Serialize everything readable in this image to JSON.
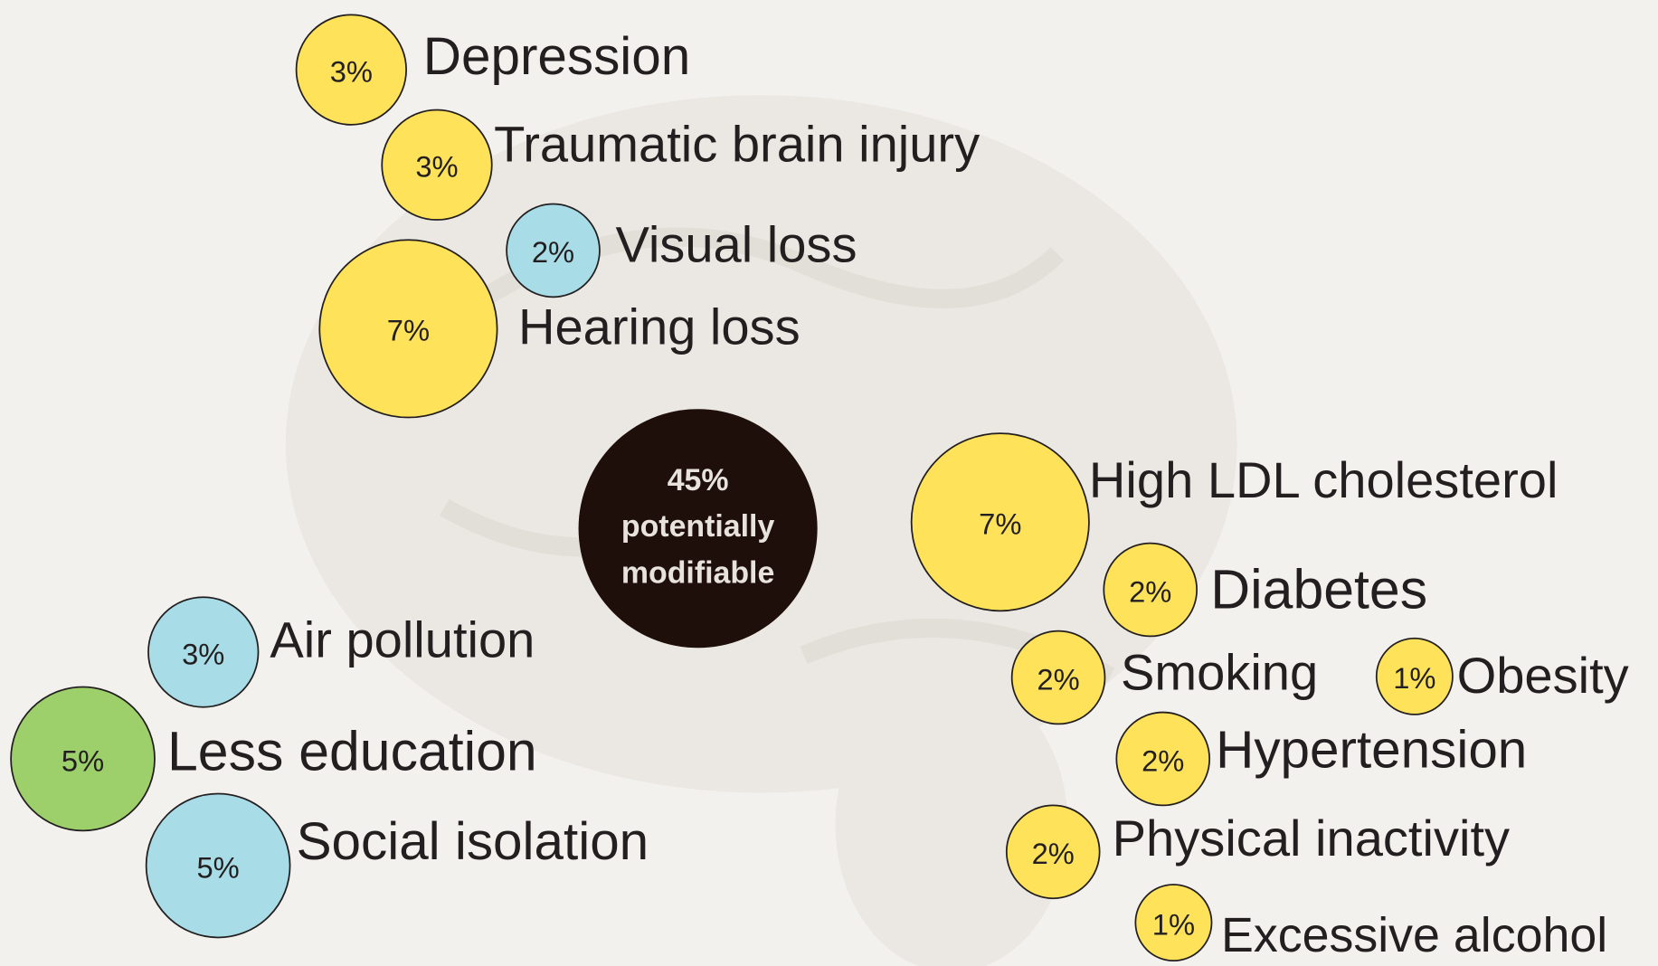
{
  "chart_data": {
    "type": "bubble",
    "categories": [
      "Depression",
      "Traumatic brain injury",
      "Visual loss",
      "Hearing loss",
      "High LDL cholesterol",
      "Diabetes",
      "Smoking",
      "Obesity",
      "Hypertension",
      "Physical inactivity",
      "Excessive alcohol",
      "Air pollution",
      "Less education",
      "Social isolation"
    ],
    "values": [
      3,
      3,
      2,
      7,
      7,
      2,
      2,
      1,
      2,
      2,
      1,
      3,
      5,
      5
    ],
    "value_labels": [
      "3%",
      "3%",
      "2%",
      "7%",
      "7%",
      "2%",
      "2%",
      "1%",
      "2%",
      "2%",
      "1%",
      "3%",
      "5%",
      "5%"
    ],
    "colors": [
      "#fde25a",
      "#fde25a",
      "#a8dce6",
      "#fde25a",
      "#fde25a",
      "#fde25a",
      "#fde25a",
      "#fde25a",
      "#fde25a",
      "#fde25a",
      "#fde25a",
      "#a8dce6",
      "#9dcf6b",
      "#a8dce6"
    ],
    "center": {
      "value": 45,
      "value_label": "45%",
      "text_lines": [
        "potentially",
        "modifiable"
      ],
      "color": "#1e0f0a"
    }
  }
}
